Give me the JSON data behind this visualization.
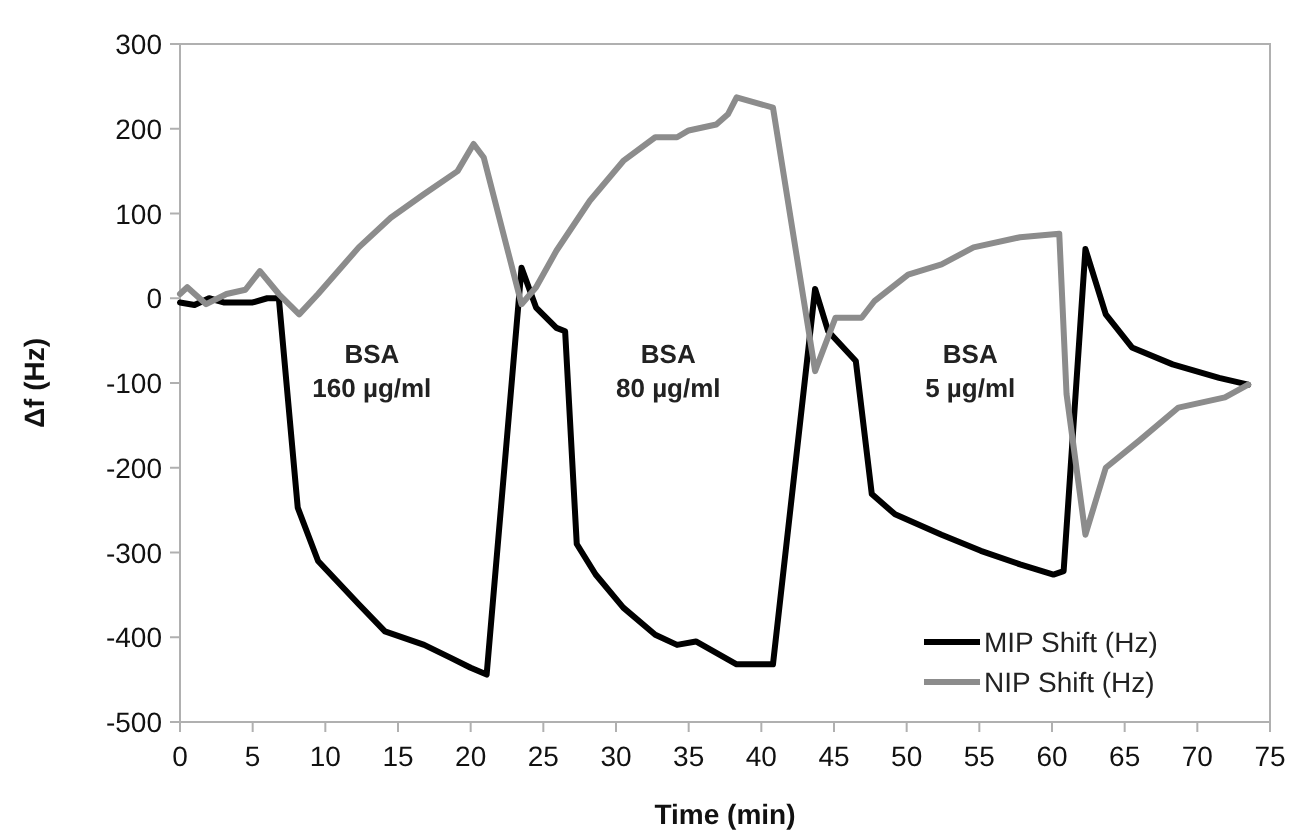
{
  "chart_data": {
    "type": "line",
    "xlabel": "Time (min)",
    "ylabel": "Δf (Hz)",
    "xlim": [
      0,
      75
    ],
    "xticks": [
      0,
      5,
      10,
      15,
      20,
      25,
      30,
      35,
      40,
      45,
      50,
      55,
      60,
      65,
      70,
      75
    ],
    "ylim": [
      -500,
      300
    ],
    "yticks": [
      -500,
      -400,
      -300,
      -200,
      -100,
      0,
      100,
      200,
      300
    ],
    "grid": false,
    "legend": "bottom right",
    "marker": "none",
    "line_style": "solid",
    "series": [
      {
        "name": "MIP Shift (Hz)",
        "color": "#000000",
        "x": [
          0,
          1,
          2,
          3,
          4,
          5,
          6,
          6.8,
          8.1,
          9.5,
          12.3,
          14.1,
          16.8,
          18.6,
          20,
          21.1,
          23.5,
          24.5,
          25.9,
          26.5,
          27.3,
          28.6,
          30.5,
          32.7,
          34.2,
          35.5,
          38.3,
          40.8,
          43.7,
          44.6,
          46.5,
          47.6,
          49.2,
          52.4,
          55.1,
          57.8,
          60.1,
          60.8,
          62.3,
          63.7,
          65.5,
          68.3,
          71.5,
          73.5
        ],
        "values": [
          -5,
          -8,
          0,
          -5,
          -5,
          -5,
          0,
          0,
          -247,
          -310,
          -361,
          -393,
          -409,
          -424,
          -436,
          -444,
          36,
          -11,
          -35,
          -39,
          -290,
          -326,
          -365,
          -397,
          -409,
          -405,
          -432,
          -432,
          11,
          -39,
          -74,
          -231,
          -255,
          -279,
          -298,
          -314,
          -326,
          -322,
          58,
          -19,
          -58,
          -78,
          -94,
          -102
        ]
      },
      {
        "name": "NIP Shift (Hz)",
        "color": "#8c8c8c",
        "x": [
          0,
          0.5,
          1.8,
          3.2,
          4.5,
          5.5,
          6.8,
          8.2,
          9.5,
          12.3,
          14.5,
          16.8,
          19.1,
          20.2,
          20.9,
          23.5,
          24.5,
          25.9,
          28.2,
          30.5,
          32.7,
          34.2,
          35,
          36.9,
          37.7,
          38.3,
          40.8,
          43.7,
          45.1,
          46.9,
          47.8,
          50.1,
          52.4,
          54.6,
          57.8,
          60.5,
          61,
          62.3,
          63.7,
          66,
          68.7,
          71.9,
          73.5
        ],
        "values": [
          5,
          13,
          -7,
          5,
          10,
          32,
          5,
          -19,
          5,
          60,
          95,
          123,
          150,
          182,
          166,
          -7,
          13,
          56,
          115,
          162,
          190,
          190,
          198,
          205,
          217,
          237,
          225,
          -86,
          -23,
          -23,
          -3,
          28,
          40,
          60,
          72,
          76,
          -113,
          -279,
          -200,
          -168,
          -129,
          -117,
          -102
        ]
      }
    ],
    "annotations": [
      "BSA\n160 µg/ml",
      "BSA\n80 µg/ml",
      "BSA\n5 µg/ml"
    ]
  }
}
